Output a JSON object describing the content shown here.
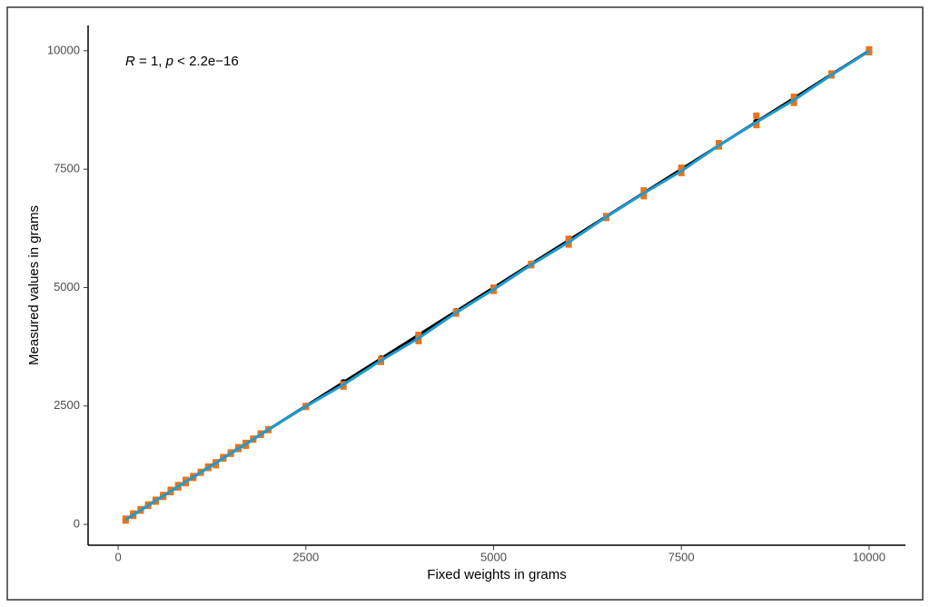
{
  "chart_data": {
    "type": "scatter",
    "xlabel": "Fixed weights in grams",
    "ylabel": "Measured values in grams",
    "annotation": [
      "R",
      " = 1, ",
      "p",
      " < 2.2e−16"
    ],
    "x": [
      100,
      200,
      300,
      400,
      500,
      600,
      700,
      800,
      900,
      1000,
      1100,
      1200,
      1300,
      1400,
      1500,
      1600,
      1700,
      1800,
      1900,
      2000,
      2500,
      3000,
      3500,
      4000,
      4500,
      5000,
      5500,
      6000,
      6500,
      7000,
      7500,
      8000,
      8500,
      9000,
      9500,
      10000
    ],
    "series": [
      {
        "kind": "line-points",
        "color": "#000000",
        "values": [
          100,
          200,
          300,
          400,
          500,
          600,
          700,
          800,
          900,
          1000,
          1100,
          1200,
          1300,
          1400,
          1500,
          1600,
          1700,
          1800,
          1900,
          2000,
          2500,
          3000,
          3500,
          4000,
          4500,
          5000,
          5500,
          6000,
          6500,
          7000,
          7500,
          8000,
          8500,
          9000,
          9500,
          10000
        ]
      },
      {
        "kind": "points",
        "color": "#e8731a",
        "values": [
          120,
          230,
          320,
          420,
          520,
          620,
          730,
          830,
          940,
          1020,
          1110,
          1220,
          1310,
          1420,
          1520,
          1630,
          1720,
          1810,
          1920,
          2010,
          2500,
          2960,
          3480,
          4000,
          4490,
          5000,
          5500,
          6030,
          6510,
          7050,
          7530,
          8050,
          8630,
          9030,
          9520,
          10030
        ]
      },
      {
        "kind": "points",
        "color": "#e8731a",
        "values": [
          80,
          180,
          290,
          390,
          480,
          580,
          680,
          780,
          870,
          980,
          1090,
          1190,
          1250,
          1390,
          1490,
          1590,
          1660,
          1790,
          1890,
          1990,
          2480,
          2910,
          3430,
          3870,
          4450,
          4930,
          5470,
          5910,
          6470,
          6930,
          7420,
          7980,
          8430,
          8900,
          9480,
          9970
        ]
      },
      {
        "kind": "line",
        "color": "#1f9bcf",
        "values": [
          100,
          200,
          300,
          400,
          500,
          600,
          700,
          800,
          900,
          1000,
          1100,
          1200,
          1290,
          1400,
          1500,
          1600,
          1690,
          1800,
          1900,
          2000,
          2490,
          2950,
          3460,
          3930,
          4470,
          4960,
          5480,
          5960,
          6490,
          6990,
          7460,
          8000,
          8490,
          8960,
          9490,
          9990
        ]
      }
    ],
    "xlim": [
      -400,
      10485
    ],
    "ylim": [
      -440,
      10535
    ],
    "xticks": [
      0,
      2500,
      5000,
      7500,
      10000
    ],
    "yticks": [
      0,
      2500,
      5000,
      7500,
      10000
    ],
    "grid": false
  }
}
